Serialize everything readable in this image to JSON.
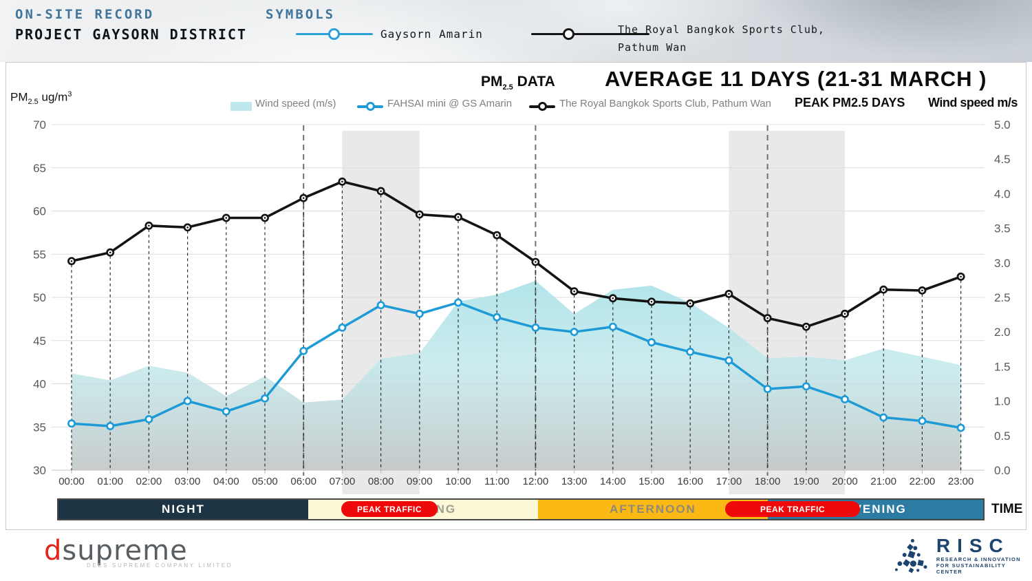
{
  "banner": {
    "record_label": "ON-SITE RECORD",
    "project_title": "PROJECT GAYSORN DISTRICT",
    "symbols_label": "SYMBOLS",
    "symbols": [
      {
        "label": "Gaysorn Amarin",
        "color": "#2a9fd8"
      },
      {
        "label_line1": "The Royal Bangkok Sports Club,",
        "label_line2": "Pathum Wan",
        "color": "#141414"
      }
    ]
  },
  "chart_header": {
    "pm_prefix": "PM",
    "pm_sub": "2.5",
    "pm_suffix": " DATA",
    "title": "AVERAGE 11 DAYS (21-31 MARCH )",
    "y_prefix": "PM",
    "y_sub": "2.5",
    "y_mid": " ug/m",
    "y_sup": "3"
  },
  "legend": {
    "wind_label": "Wind speed (m/s)",
    "wind_swatch_color": "#bfe8ec",
    "fahsai_label": "FAHSAI mini @ GS Amarin",
    "fahsai_color": "#1e9bd7",
    "royal_label": "The Royal Bangkok Sports Club, Pathum Wan",
    "royal_color": "#141414",
    "peak_days_label": "PEAK PM2.5 DAYS",
    "wind_axis_label": "Wind speed m/s"
  },
  "chart_data": {
    "type": "line",
    "x": [
      "00:00",
      "01:00",
      "02:00",
      "03:00",
      "04:00",
      "05:00",
      "06:00",
      "07:00",
      "08:00",
      "09:00",
      "10:00",
      "11:00",
      "12:00",
      "13:00",
      "14:00",
      "15:00",
      "16:00",
      "17:00",
      "18:00",
      "19:00",
      "20:00",
      "21:00",
      "22:00",
      "23:00"
    ],
    "series": [
      {
        "name": "Wind speed (m/s)",
        "type": "area",
        "axis": "right",
        "color": "#bfe8ec",
        "values": [
          1.4,
          1.3,
          1.51,
          1.41,
          1.07,
          1.36,
          0.98,
          1.02,
          1.61,
          1.69,
          2.44,
          2.54,
          2.74,
          2.26,
          2.61,
          2.67,
          2.42,
          2.06,
          1.62,
          1.64,
          1.59,
          1.76,
          1.64,
          1.52
        ]
      },
      {
        "name": "FAHSAI mini @ GS Amarin",
        "type": "line",
        "axis": "left",
        "color": "#1e9bd7",
        "values": [
          35.4,
          35.1,
          35.9,
          38.0,
          36.8,
          38.3,
          43.8,
          46.5,
          49.1,
          48.1,
          49.4,
          47.7,
          46.5,
          46.0,
          46.6,
          44.8,
          43.7,
          42.7,
          39.4,
          39.7,
          38.2,
          36.1,
          35.7,
          34.9
        ]
      },
      {
        "name": "The Royal Bangkok Sports Club, Pathum Wan",
        "type": "line",
        "axis": "left",
        "color": "#141414",
        "values": [
          54.2,
          55.2,
          58.3,
          58.1,
          59.2,
          59.2,
          61.5,
          63.4,
          62.3,
          59.6,
          59.3,
          57.2,
          54.1,
          50.7,
          49.9,
          49.5,
          49.3,
          50.4,
          47.6,
          46.6,
          48.1,
          50.9,
          50.8,
          52.4
        ]
      }
    ],
    "left_axis": {
      "min": 30,
      "max": 70,
      "step": 5,
      "ticks": [
        "30",
        "35",
        "40",
        "45",
        "50",
        "55",
        "60",
        "65",
        "70"
      ]
    },
    "right_axis": {
      "min": 0,
      "max": 5,
      "step": 0.5,
      "ticks": [
        "0.0",
        "0.5",
        "1.0",
        "1.5",
        "2.0",
        "2.5",
        "3.0",
        "3.5",
        "4.0",
        "4.5",
        "5.0"
      ]
    },
    "peak_bands": [
      [
        "07:00",
        "09:00"
      ],
      [
        "17:00",
        "20:00"
      ]
    ],
    "peak_band_color": "#e9e9e9",
    "major_dashed_hours": [
      "06:00",
      "12:00",
      "18:00"
    ],
    "grid": true,
    "legend_position": "top"
  },
  "timeline": {
    "segments": [
      {
        "label": "NIGHT",
        "bg": "#1c3443",
        "text_color": "#ffffff"
      },
      {
        "label": "MORNING",
        "bg": "#fbf8d6",
        "text_color": "#a0a091"
      },
      {
        "label": "AFTERNOON",
        "bg": "#fcb813",
        "text_color": "#8f8a78"
      },
      {
        "label": "EVENING",
        "bg": "#2d7ba3",
        "text_color": "#ffffff"
      }
    ],
    "pills": [
      {
        "label": "PEAK TRAFFIC"
      },
      {
        "label": "PEAK TRAFFIC"
      }
    ],
    "pill_color": "#ee0a0a",
    "time_label": "TIME"
  },
  "footer": {
    "dsupreme": {
      "d": "d",
      "rest": "supreme",
      "tagline": "DEES SUPREME COMPANY LIMITED",
      "d_color": "#e1251b",
      "text_color": "#595e62"
    },
    "risc": {
      "name": "RISC",
      "line1": "RESEARCH & INNOVATION",
      "line2": "FOR SUSTAINABILITY CENTER",
      "color": "#1d4370"
    }
  }
}
